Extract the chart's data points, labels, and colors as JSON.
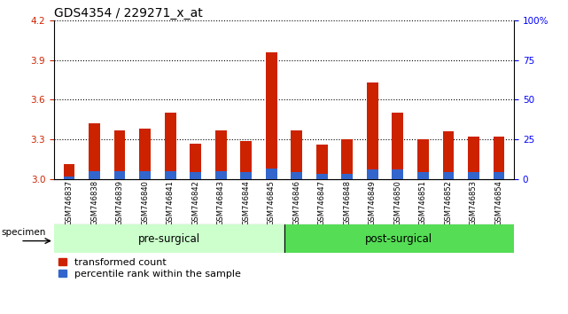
{
  "title": "GDS4354 / 229271_x_at",
  "samples": [
    "GSM746837",
    "GSM746838",
    "GSM746839",
    "GSM746840",
    "GSM746841",
    "GSM746842",
    "GSM746843",
    "GSM746844",
    "GSM746845",
    "GSM746846",
    "GSM746847",
    "GSM746848",
    "GSM746849",
    "GSM746850",
    "GSM746851",
    "GSM746852",
    "GSM746853",
    "GSM746854"
  ],
  "red_values": [
    3.11,
    3.42,
    3.37,
    3.38,
    3.5,
    3.27,
    3.37,
    3.29,
    3.96,
    3.37,
    3.26,
    3.3,
    3.73,
    3.5,
    3.3,
    3.36,
    3.32,
    3.32
  ],
  "blue_values": [
    0.02,
    0.06,
    0.06,
    0.06,
    0.06,
    0.05,
    0.06,
    0.05,
    0.08,
    0.05,
    0.04,
    0.04,
    0.07,
    0.07,
    0.05,
    0.05,
    0.05,
    0.05
  ],
  "baseline": 3.0,
  "ylim": [
    3.0,
    4.2
  ],
  "y_ticks": [
    3.0,
    3.3,
    3.6,
    3.9,
    4.2
  ],
  "right_ticks": [
    0,
    25,
    50,
    75,
    100
  ],
  "pre_surgical_count": 9,
  "group_labels": [
    "pre-surgical",
    "post-surgical"
  ],
  "bar_color_red": "#cc2200",
  "bar_color_blue": "#3366cc",
  "bar_width": 0.45,
  "gray_bg": "#c8c8c8",
  "green_light": "#ccffcc",
  "green_dark": "#55dd55",
  "title_fontsize": 10,
  "tick_fontsize": 7.5,
  "label_fontsize": 6.0,
  "legend_fontsize": 8,
  "specimen_label": "specimen"
}
